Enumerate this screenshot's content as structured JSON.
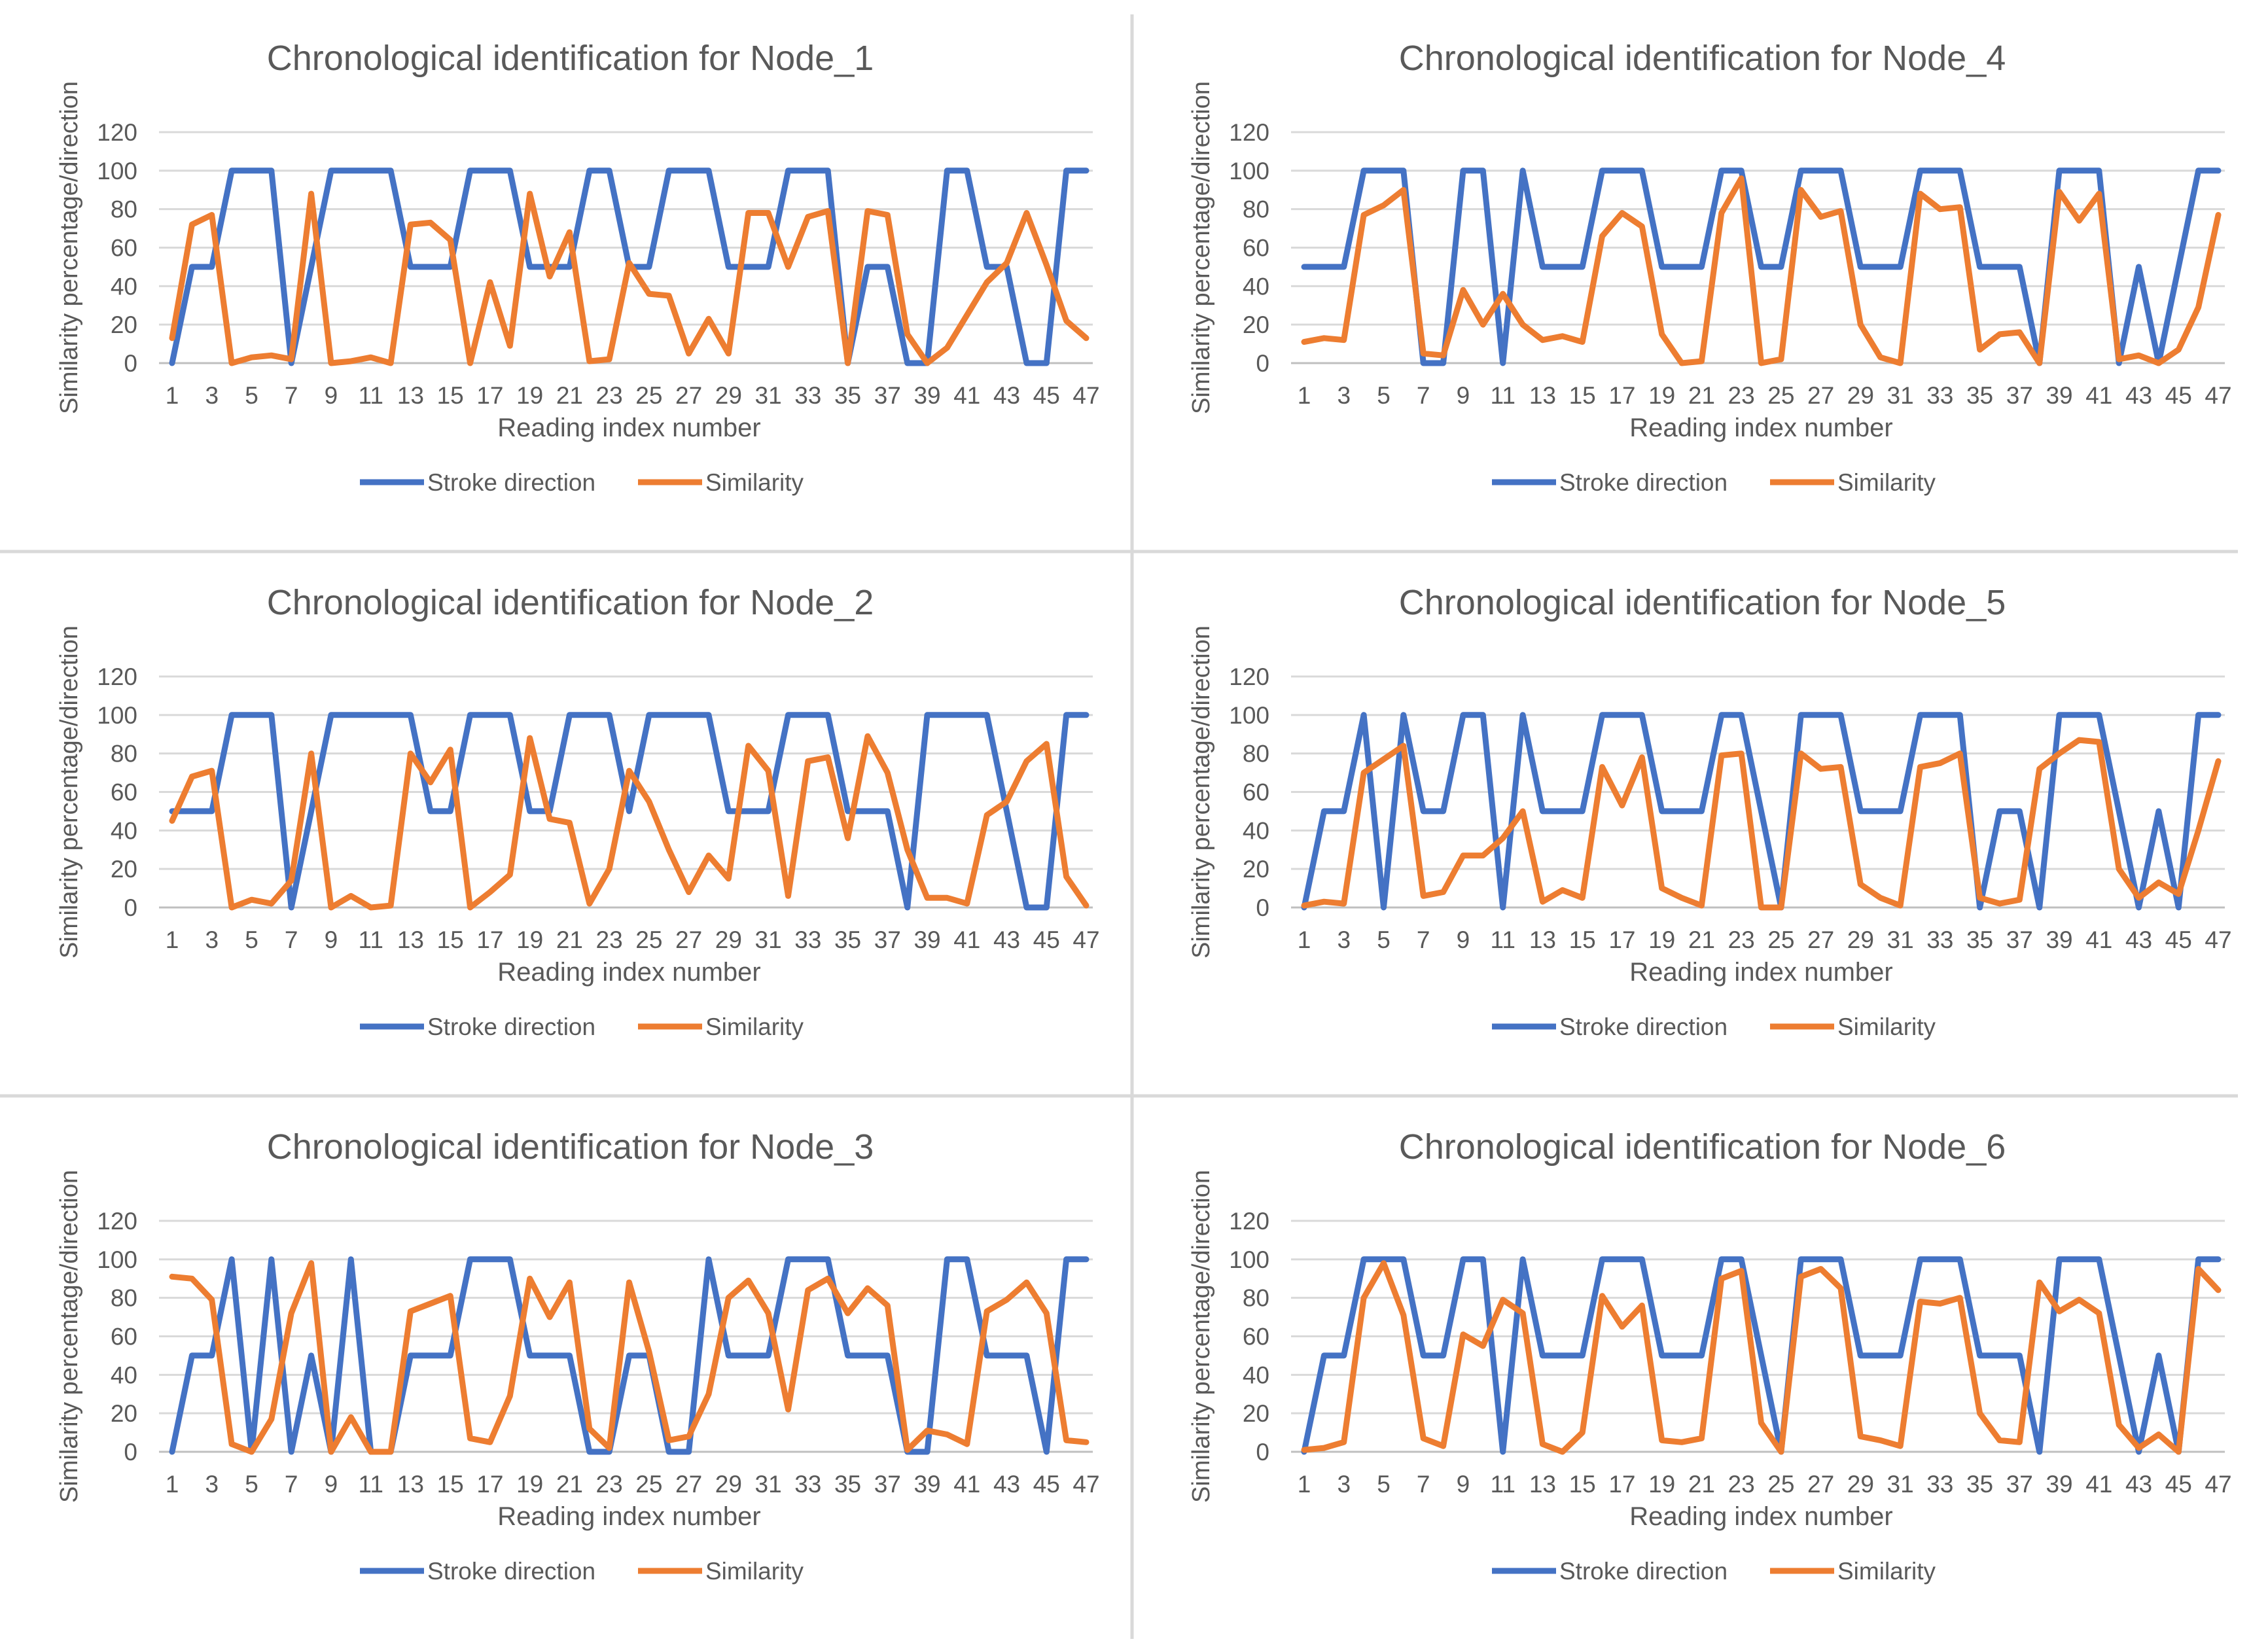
{
  "chart_data": [
    {
      "type": "line",
      "title": "Chronological identification for Node_1",
      "xlabel": "Reading index number",
      "ylabel": "Similarity percentage/direction",
      "ylim": [
        0,
        120
      ],
      "yticks": [
        0,
        20,
        40,
        60,
        80,
        100,
        120
      ],
      "x": [
        1,
        2,
        3,
        4,
        5,
        6,
        7,
        8,
        9,
        10,
        11,
        12,
        13,
        14,
        15,
        16,
        17,
        18,
        19,
        20,
        21,
        22,
        23,
        24,
        25,
        26,
        27,
        28,
        29,
        30,
        31,
        32,
        33,
        34,
        35,
        36,
        37,
        38,
        39,
        40,
        41,
        42,
        43,
        44,
        45,
        46,
        47
      ],
      "xtick_labels": [
        "1",
        "3",
        "5",
        "7",
        "9",
        "11",
        "13",
        "15",
        "17",
        "19",
        "21",
        "23",
        "25",
        "27",
        "29",
        "31",
        "33",
        "35",
        "37",
        "39",
        "41",
        "43",
        "45",
        "47"
      ],
      "legend": "bottom",
      "series": [
        {
          "name": "Stroke direction",
          "color": "#4472C4",
          "values": [
            0,
            50,
            50,
            100,
            100,
            100,
            0,
            50,
            100,
            100,
            100,
            100,
            50,
            50,
            50,
            100,
            100,
            100,
            50,
            50,
            50,
            100,
            100,
            50,
            50,
            100,
            100,
            100,
            50,
            50,
            50,
            100,
            100,
            100,
            0,
            50,
            50,
            0,
            0,
            100,
            100,
            50,
            50,
            0,
            0,
            100,
            100
          ]
        },
        {
          "name": "Similarity",
          "color": "#ED7D31",
          "values": [
            13,
            72,
            77,
            0,
            3,
            4,
            2,
            88,
            0,
            1,
            3,
            0,
            72,
            73,
            64,
            0,
            42,
            9,
            88,
            45,
            68,
            1,
            2,
            52,
            36,
            35,
            5,
            23,
            5,
            78,
            78,
            50,
            76,
            79,
            0,
            79,
            77,
            15,
            0,
            8,
            25,
            42,
            52,
            78,
            51,
            22,
            13
          ]
        }
      ]
    },
    {
      "type": "line",
      "title": "Chronological identification for Node_4",
      "xlabel": "Reading index number",
      "ylabel": "Similarity percentage/direction",
      "ylim": [
        0,
        120
      ],
      "yticks": [
        0,
        20,
        40,
        60,
        80,
        100,
        120
      ],
      "x": [
        1,
        2,
        3,
        4,
        5,
        6,
        7,
        8,
        9,
        10,
        11,
        12,
        13,
        14,
        15,
        16,
        17,
        18,
        19,
        20,
        21,
        22,
        23,
        24,
        25,
        26,
        27,
        28,
        29,
        30,
        31,
        32,
        33,
        34,
        35,
        36,
        37,
        38,
        39,
        40,
        41,
        42,
        43,
        44,
        45,
        46,
        47
      ],
      "xtick_labels": [
        "1",
        "3",
        "5",
        "7",
        "9",
        "11",
        "13",
        "15",
        "17",
        "19",
        "21",
        "23",
        "25",
        "27",
        "29",
        "31",
        "33",
        "35",
        "37",
        "39",
        "41",
        "43",
        "45",
        "47"
      ],
      "legend": "bottom",
      "series": [
        {
          "name": "Stroke direction",
          "color": "#4472C4",
          "values": [
            50,
            50,
            50,
            100,
            100,
            100,
            0,
            0,
            100,
            100,
            0,
            100,
            50,
            50,
            50,
            100,
            100,
            100,
            50,
            50,
            50,
            100,
            100,
            50,
            50,
            100,
            100,
            100,
            50,
            50,
            50,
            100,
            100,
            100,
            50,
            50,
            50,
            0,
            100,
            100,
            100,
            0,
            50,
            0,
            50,
            100,
            100
          ]
        },
        {
          "name": "Similarity",
          "color": "#ED7D31",
          "values": [
            11,
            13,
            12,
            77,
            82,
            90,
            5,
            4,
            38,
            20,
            36,
            20,
            12,
            14,
            11,
            66,
            78,
            71,
            15,
            0,
            1,
            78,
            96,
            0,
            2,
            90,
            76,
            79,
            20,
            3,
            0,
            88,
            80,
            81,
            7,
            15,
            16,
            0,
            89,
            74,
            88,
            2,
            4,
            0,
            7,
            29,
            77
          ]
        }
      ]
    },
    {
      "type": "line",
      "title": "Chronological identification for Node_2",
      "xlabel": "Reading index number",
      "ylabel": "Similarity percentage/direction",
      "ylim": [
        0,
        120
      ],
      "yticks": [
        0,
        20,
        40,
        60,
        80,
        100,
        120
      ],
      "x": [
        1,
        2,
        3,
        4,
        5,
        6,
        7,
        8,
        9,
        10,
        11,
        12,
        13,
        14,
        15,
        16,
        17,
        18,
        19,
        20,
        21,
        22,
        23,
        24,
        25,
        26,
        27,
        28,
        29,
        30,
        31,
        32,
        33,
        34,
        35,
        36,
        37,
        38,
        39,
        40,
        41,
        42,
        43,
        44,
        45,
        46,
        47
      ],
      "xtick_labels": [
        "1",
        "3",
        "5",
        "7",
        "9",
        "11",
        "13",
        "15",
        "17",
        "19",
        "21",
        "23",
        "25",
        "27",
        "29",
        "31",
        "33",
        "35",
        "37",
        "39",
        "41",
        "43",
        "45",
        "47"
      ],
      "legend": "bottom",
      "series": [
        {
          "name": "Stroke direction",
          "color": "#4472C4",
          "values": [
            50,
            50,
            50,
            100,
            100,
            100,
            0,
            50,
            100,
            100,
            100,
            100,
            100,
            50,
            50,
            100,
            100,
            100,
            50,
            50,
            100,
            100,
            100,
            50,
            100,
            100,
            100,
            100,
            50,
            50,
            50,
            100,
            100,
            100,
            50,
            50,
            50,
            0,
            100,
            100,
            100,
            100,
            50,
            0,
            0,
            100,
            100
          ]
        },
        {
          "name": "Similarity",
          "color": "#ED7D31",
          "values": [
            45,
            68,
            71,
            0,
            4,
            2,
            14,
            80,
            0,
            6,
            0,
            1,
            80,
            65,
            82,
            0,
            8,
            17,
            88,
            46,
            44,
            2,
            20,
            71,
            55,
            30,
            8,
            27,
            15,
            84,
            71,
            6,
            76,
            78,
            36,
            89,
            70,
            30,
            5,
            5,
            2,
            48,
            55,
            76,
            85,
            16,
            1
          ]
        }
      ]
    },
    {
      "type": "line",
      "title": "Chronological identification for Node_5",
      "xlabel": "Reading index number",
      "ylabel": "Similarity percentage/direction",
      "ylim": [
        0,
        120
      ],
      "yticks": [
        0,
        20,
        40,
        60,
        80,
        100,
        120
      ],
      "x": [
        1,
        2,
        3,
        4,
        5,
        6,
        7,
        8,
        9,
        10,
        11,
        12,
        13,
        14,
        15,
        16,
        17,
        18,
        19,
        20,
        21,
        22,
        23,
        24,
        25,
        26,
        27,
        28,
        29,
        30,
        31,
        32,
        33,
        34,
        35,
        36,
        37,
        38,
        39,
        40,
        41,
        42,
        43,
        44,
        45,
        46,
        47
      ],
      "xtick_labels": [
        "1",
        "3",
        "5",
        "7",
        "9",
        "11",
        "13",
        "15",
        "17",
        "19",
        "21",
        "23",
        "25",
        "27",
        "29",
        "31",
        "33",
        "35",
        "37",
        "39",
        "41",
        "43",
        "45",
        "47"
      ],
      "legend": "bottom",
      "series": [
        {
          "name": "Stroke direction",
          "color": "#4472C4",
          "values": [
            0,
            50,
            50,
            100,
            0,
            100,
            50,
            50,
            100,
            100,
            0,
            100,
            50,
            50,
            50,
            100,
            100,
            100,
            50,
            50,
            50,
            100,
            100,
            50,
            0,
            100,
            100,
            100,
            50,
            50,
            50,
            100,
            100,
            100,
            0,
            50,
            50,
            0,
            100,
            100,
            100,
            50,
            0,
            50,
            0,
            100,
            100
          ]
        },
        {
          "name": "Similarity",
          "color": "#ED7D31",
          "values": [
            1,
            3,
            2,
            70,
            77,
            84,
            6,
            8,
            27,
            27,
            36,
            50,
            3,
            9,
            5,
            73,
            53,
            78,
            10,
            5,
            1,
            79,
            80,
            0,
            0,
            80,
            72,
            73,
            12,
            5,
            1,
            73,
            75,
            80,
            5,
            2,
            4,
            72,
            80,
            87,
            86,
            20,
            5,
            13,
            7,
            40,
            76
          ]
        }
      ]
    },
    {
      "type": "line",
      "title": "Chronological identification for Node_3",
      "xlabel": "Reading index number",
      "ylabel": "Similarity percentage/direction",
      "ylim": [
        0,
        120
      ],
      "yticks": [
        0,
        20,
        40,
        60,
        80,
        100,
        120
      ],
      "x": [
        1,
        2,
        3,
        4,
        5,
        6,
        7,
        8,
        9,
        10,
        11,
        12,
        13,
        14,
        15,
        16,
        17,
        18,
        19,
        20,
        21,
        22,
        23,
        24,
        25,
        26,
        27,
        28,
        29,
        30,
        31,
        32,
        33,
        34,
        35,
        36,
        37,
        38,
        39,
        40,
        41,
        42,
        43,
        44,
        45,
        46,
        47
      ],
      "xtick_labels": [
        "1",
        "3",
        "5",
        "7",
        "9",
        "11",
        "13",
        "15",
        "17",
        "19",
        "21",
        "23",
        "25",
        "27",
        "29",
        "31",
        "33",
        "35",
        "37",
        "39",
        "41",
        "43",
        "45",
        "47"
      ],
      "legend": "bottom",
      "series": [
        {
          "name": "Stroke direction",
          "color": "#4472C4",
          "values": [
            0,
            50,
            50,
            100,
            0,
            100,
            0,
            50,
            0,
            100,
            0,
            0,
            50,
            50,
            50,
            100,
            100,
            100,
            50,
            50,
            50,
            0,
            0,
            50,
            50,
            0,
            0,
            100,
            50,
            50,
            50,
            100,
            100,
            100,
            50,
            50,
            50,
            0,
            0,
            100,
            100,
            50,
            50,
            50,
            0,
            100,
            100
          ]
        },
        {
          "name": "Similarity",
          "color": "#ED7D31",
          "values": [
            91,
            90,
            79,
            4,
            0,
            17,
            72,
            98,
            0,
            18,
            0,
            0,
            73,
            77,
            81,
            7,
            5,
            29,
            90,
            70,
            88,
            12,
            2,
            88,
            52,
            6,
            8,
            30,
            80,
            89,
            72,
            22,
            84,
            90,
            72,
            85,
            76,
            1,
            11,
            9,
            4,
            73,
            79,
            88,
            72,
            6,
            5
          ]
        }
      ]
    },
    {
      "type": "line",
      "title": "Chronological identification for Node_6",
      "xlabel": "Reading index number",
      "ylabel": "Similarity percentage/direction",
      "ylim": [
        0,
        120
      ],
      "yticks": [
        0,
        20,
        40,
        60,
        80,
        100,
        120
      ],
      "x": [
        1,
        2,
        3,
        4,
        5,
        6,
        7,
        8,
        9,
        10,
        11,
        12,
        13,
        14,
        15,
        16,
        17,
        18,
        19,
        20,
        21,
        22,
        23,
        24,
        25,
        26,
        27,
        28,
        29,
        30,
        31,
        32,
        33,
        34,
        35,
        36,
        37,
        38,
        39,
        40,
        41,
        42,
        43,
        44,
        45,
        46,
        47
      ],
      "xtick_labels": [
        "1",
        "3",
        "5",
        "7",
        "9",
        "11",
        "13",
        "15",
        "17",
        "19",
        "21",
        "23",
        "25",
        "27",
        "29",
        "31",
        "33",
        "35",
        "37",
        "39",
        "41",
        "43",
        "45",
        "47"
      ],
      "legend": "bottom",
      "series": [
        {
          "name": "Stroke direction",
          "color": "#4472C4",
          "values": [
            0,
            50,
            50,
            100,
            100,
            100,
            50,
            50,
            100,
            100,
            0,
            100,
            50,
            50,
            50,
            100,
            100,
            100,
            50,
            50,
            50,
            100,
            100,
            50,
            0,
            100,
            100,
            100,
            50,
            50,
            50,
            100,
            100,
            100,
            50,
            50,
            50,
            0,
            100,
            100,
            100,
            50,
            0,
            50,
            0,
            100,
            100
          ]
        },
        {
          "name": "Similarity",
          "color": "#ED7D31",
          "values": [
            1,
            2,
            5,
            80,
            98,
            71,
            7,
            3,
            61,
            55,
            79,
            72,
            4,
            0,
            10,
            81,
            65,
            76,
            6,
            5,
            7,
            90,
            94,
            15,
            0,
            91,
            95,
            85,
            8,
            6,
            3,
            78,
            77,
            80,
            20,
            6,
            5,
            88,
            73,
            79,
            72,
            14,
            2,
            9,
            0,
            95,
            84
          ]
        }
      ]
    }
  ]
}
